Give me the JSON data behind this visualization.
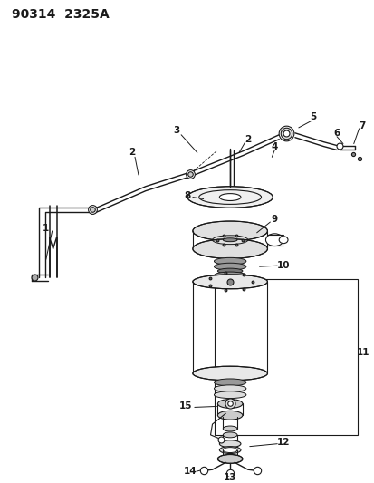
{
  "title": "90314  2325A",
  "bg_color": "#ffffff",
  "line_color": "#1a1a1a",
  "title_fontsize": 10,
  "label_fontsize": 7.5,
  "figsize": [
    4.14,
    5.33
  ],
  "dpi": 100
}
